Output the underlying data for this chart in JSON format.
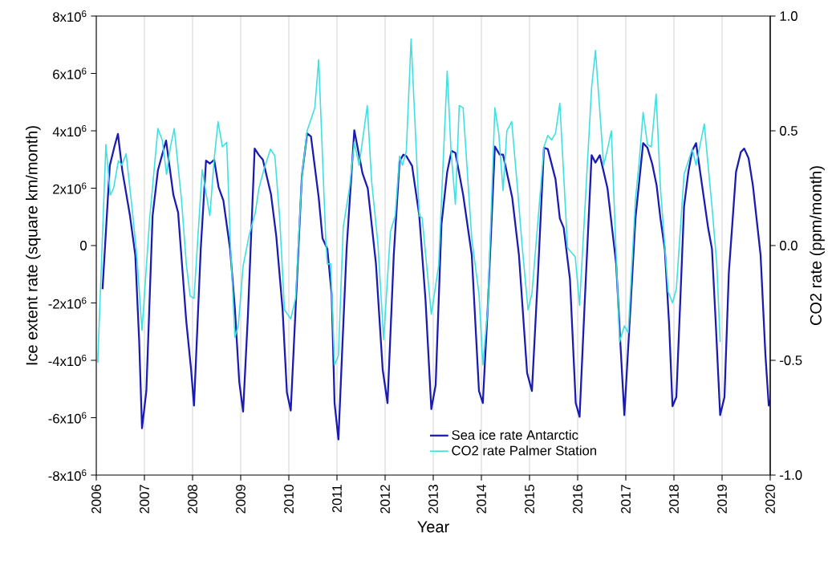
{
  "chart_data": {
    "type": "line",
    "xlabel": "Year",
    "ylabel": "Ice extent rate (square km/month)",
    "y2label": "CO2 rate (ppm/month)",
    "xlim": [
      2006,
      2020
    ],
    "xticks": [
      2006,
      2007,
      2008,
      2009,
      2010,
      2011,
      2012,
      2013,
      2014,
      2015,
      2016,
      2017,
      2018,
      2019,
      2020
    ],
    "ylim": [
      -8000000,
      8000000
    ],
    "yticks": [
      {
        "value": -8000000,
        "label": "-8x10$^{6}$"
      },
      {
        "value": -6000000,
        "label": "-6x10$^{6}$"
      },
      {
        "value": -4000000,
        "label": "-4x10$^{6}$"
      },
      {
        "value": -2000000,
        "label": "-2x10$^{6}$"
      },
      0,
      {
        "value": 2000000,
        "label": "2x10$^{6}$"
      },
      {
        "value": 4000000,
        "label": "4x10$^{6}$"
      },
      {
        "value": 6000000,
        "label": "6x10$^{6}$"
      },
      {
        "value": 8000000,
        "label": "8x10$^{6}$"
      }
    ],
    "y2lim": [
      -1.0,
      1.0
    ],
    "y2ticks": [
      {
        "value": -1.0,
        "label": "-1.0"
      },
      {
        "value": -0.5,
        "label": "-0.5"
      },
      {
        "value": 0,
        "label": "0.0"
      },
      {
        "value": 0.5,
        "label": "0.5"
      },
      {
        "value": 1.0,
        "label": "1.0"
      }
    ],
    "grid": "x",
    "legend": "bottom",
    "marker": "none",
    "line_style": "solid",
    "series": [
      {
        "name": "Sea ice rate Antarctic",
        "color": "#1a1ab4",
        "x": [
          2006.13,
          2006.28,
          2006.38,
          2006.45,
          2006.54,
          2006.7,
          2006.81,
          2006.89,
          2006.95,
          2007.04,
          2007.17,
          2007.28,
          2007.45,
          2007.6,
          2007.7,
          2007.87,
          2007.97,
          2008.03,
          2008.17,
          2008.28,
          2008.36,
          2008.45,
          2008.54,
          2008.64,
          2008.78,
          2008.88,
          2008.97,
          2009.05,
          2009.15,
          2009.29,
          2009.38,
          2009.46,
          2009.63,
          2009.74,
          2009.87,
          2009.96,
          2010.04,
          2010.14,
          2010.27,
          2010.38,
          2010.46,
          2010.62,
          2010.7,
          2010.8,
          2010.89,
          2010.95,
          2011.03,
          2011.11,
          2011.2,
          2011.36,
          2011.53,
          2011.64,
          2011.81,
          2011.95,
          2012.05,
          2012.18,
          2012.3,
          2012.38,
          2012.44,
          2012.56,
          2012.71,
          2012.84,
          2012.96,
          2013.05,
          2013.17,
          2013.29,
          2013.38,
          2013.46,
          2013.62,
          2013.8,
          2013.95,
          2014.03,
          2014.13,
          2014.28,
          2014.38,
          2014.45,
          2014.64,
          2014.78,
          2014.95,
          2015.05,
          2015.18,
          2015.3,
          2015.38,
          2015.54,
          2015.63,
          2015.71,
          2015.84,
          2015.96,
          2016.04,
          2016.14,
          2016.29,
          2016.37,
          2016.46,
          2016.62,
          2016.8,
          2016.89,
          2016.97,
          2017.07,
          2017.2,
          2017.36,
          2017.45,
          2017.55,
          2017.64,
          2017.72,
          2017.81,
          2017.9,
          2017.97,
          2018.05,
          2018.15,
          2018.21,
          2018.3,
          2018.38,
          2018.46,
          2018.54,
          2018.71,
          2018.79,
          2018.87,
          2018.96,
          2019.05,
          2019.14,
          2019.29,
          2019.39,
          2019.46,
          2019.55,
          2019.64,
          2019.8,
          2019.9,
          2019.97,
          2020.0
        ],
        "values": [
          -1520000,
          2780000,
          3470000,
          3890000,
          2620000,
          1040000,
          -330000,
          -3280000,
          -6370000,
          -5070000,
          1040000,
          2620000,
          3660000,
          1780000,
          1150000,
          -2650000,
          -4330000,
          -5580000,
          -120000,
          2960000,
          2860000,
          2990000,
          2040000,
          1570000,
          -120000,
          -2220000,
          -4750000,
          -5790000,
          -2430000,
          3380000,
          3150000,
          2990000,
          1780000,
          310000,
          -2220000,
          -5120000,
          -5750000,
          -2220000,
          2410000,
          3910000,
          3800000,
          1680000,
          250000,
          -120000,
          -1700000,
          -5490000,
          -6760000,
          -3590000,
          -120000,
          4020000,
          2520000,
          1990000,
          -640000,
          -4330000,
          -5490000,
          -330000,
          2940000,
          3170000,
          3120000,
          2780000,
          1040000,
          -1910000,
          -5700000,
          -4860000,
          730000,
          2570000,
          3300000,
          3230000,
          1780000,
          -330000,
          -5070000,
          -5490000,
          -2220000,
          3450000,
          3170000,
          3170000,
          1680000,
          -330000,
          -4440000,
          -5070000,
          -850000,
          3410000,
          3360000,
          2310000,
          940000,
          620000,
          -1170000,
          -5490000,
          -5970000,
          -2220000,
          3150000,
          2890000,
          3150000,
          1990000,
          -640000,
          -3490000,
          -5910000,
          -2960000,
          940000,
          3570000,
          3410000,
          2840000,
          2100000,
          940000,
          -120000,
          -2750000,
          -5600000,
          -5280000,
          -1170000,
          1360000,
          2570000,
          3310000,
          3570000,
          2620000,
          620000,
          -120000,
          -2750000,
          -5910000,
          -5280000,
          -960000,
          2570000,
          3260000,
          3380000,
          3050000,
          2100000,
          -330000,
          -3800000,
          -5580000,
          -5390000
        ]
      },
      {
        "name": "CO2 rate Palmer Station",
        "color": "#40e0e0",
        "axis": "y2",
        "x": [
          2006.03,
          2006.2,
          2006.29,
          2006.36,
          2006.46,
          2006.53,
          2006.62,
          2006.74,
          2006.84,
          2006.95,
          2007.11,
          2007.28,
          2007.37,
          2007.46,
          2007.54,
          2007.62,
          2007.77,
          2007.87,
          2007.95,
          2008.03,
          2008.2,
          2008.36,
          2008.45,
          2008.53,
          2008.62,
          2008.71,
          2008.79,
          2008.88,
          2008.95,
          2009.05,
          2009.18,
          2009.3,
          2009.38,
          2009.48,
          2009.62,
          2009.71,
          2009.81,
          2009.91,
          2010.04,
          2010.14,
          2010.27,
          2010.38,
          2010.54,
          2010.62,
          2010.77,
          2010.8,
          2010.87,
          2010.95,
          2011.03,
          2011.13,
          2011.26,
          2011.36,
          2011.46,
          2011.63,
          2011.72,
          2011.85,
          2011.97,
          2012.11,
          2012.21,
          2012.3,
          2012.36,
          2012.44,
          2012.54,
          2012.71,
          2012.77,
          2012.96,
          2013.11,
          2013.29,
          2013.37,
          2013.46,
          2013.54,
          2013.62,
          2013.8,
          2013.95,
          2014.03,
          2014.13,
          2014.28,
          2014.36,
          2014.45,
          2014.53,
          2014.63,
          2014.75,
          2014.85,
          2014.97,
          2015.05,
          2015.18,
          2015.3,
          2015.38,
          2015.46,
          2015.54,
          2015.63,
          2015.79,
          2015.95,
          2016.04,
          2016.29,
          2016.37,
          2016.54,
          2016.62,
          2016.7,
          2016.87,
          2016.97,
          2017.05,
          2017.2,
          2017.28,
          2017.36,
          2017.45,
          2017.53,
          2017.63,
          2017.72,
          2017.81,
          2017.88,
          2017.97,
          2018.05,
          2018.21,
          2018.38,
          2018.46,
          2018.63,
          2018.79,
          2018.89,
          2018.96
        ],
        "values": [
          -0.51,
          0.44,
          0.22,
          0.25,
          0.37,
          0.35,
          0.4,
          0.17,
          -0.04,
          -0.37,
          0.12,
          0.51,
          0.46,
          0.31,
          0.43,
          0.51,
          0.2,
          -0.08,
          -0.22,
          -0.23,
          0.33,
          0.13,
          0.38,
          0.54,
          0.43,
          0.45,
          -0.01,
          -0.4,
          -0.35,
          -0.09,
          0.05,
          0.14,
          0.25,
          0.33,
          0.42,
          0.39,
          0.12,
          -0.28,
          -0.32,
          -0.23,
          0.3,
          0.5,
          0.6,
          0.81,
          0.01,
          -0.08,
          -0.08,
          -0.52,
          -0.48,
          0.08,
          0.25,
          0.45,
          0.35,
          0.61,
          0.28,
          0.01,
          -0.41,
          0.06,
          0.13,
          0.39,
          0.35,
          0.41,
          0.9,
          0.13,
          0.12,
          -0.3,
          -0.09,
          0.76,
          0.41,
          0.18,
          0.61,
          0.6,
          0.03,
          -0.21,
          -0.52,
          -0.28,
          0.6,
          0.49,
          0.24,
          0.5,
          0.54,
          0.25,
          -0.01,
          -0.28,
          -0.21,
          0.12,
          0.43,
          0.48,
          0.46,
          0.49,
          0.62,
          -0.01,
          -0.05,
          -0.26,
          0.69,
          0.85,
          0.35,
          0.42,
          0.5,
          -0.42,
          -0.35,
          -0.38,
          0.2,
          0.37,
          0.58,
          0.44,
          0.43,
          0.66,
          0.25,
          0.0,
          -0.2,
          -0.25,
          -0.19,
          0.31,
          0.42,
          0.35,
          0.53,
          0.17,
          -0.08,
          -0.42
        ]
      }
    ]
  }
}
